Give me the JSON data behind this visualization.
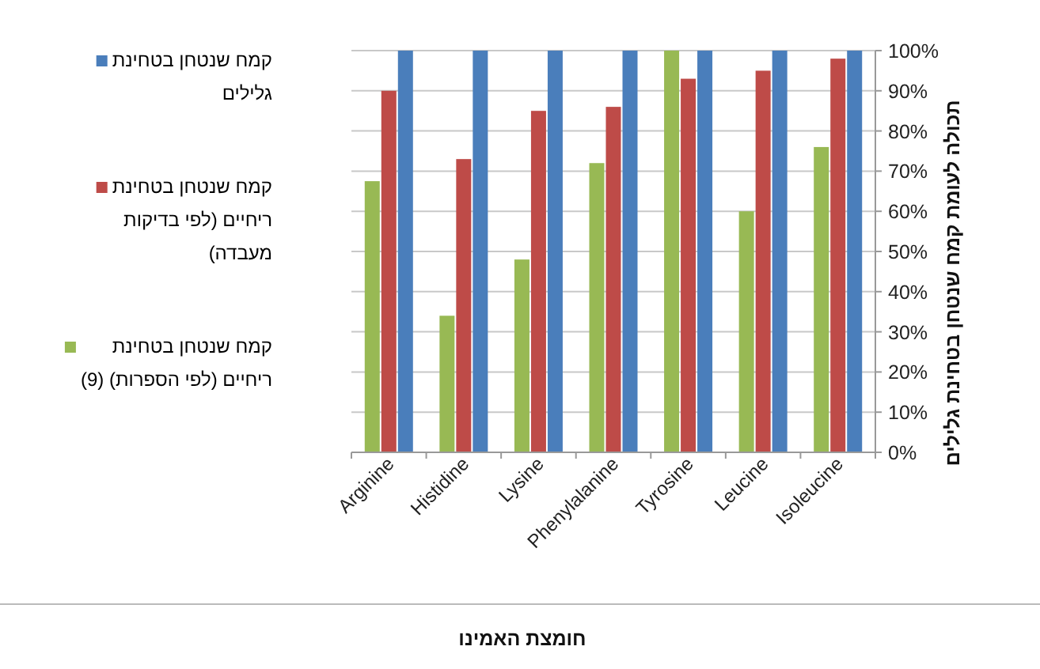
{
  "chart_data": {
    "type": "bar",
    "xlabel": "חומצת האמינו",
    "ylabel": "תכולה לעומת קמח שנטחן בטחינת גלילים",
    "categories": [
      "Arginine",
      "Histidine",
      "Lysine",
      "Phenylalanine",
      "Tyrosine",
      "Leucine",
      "Isoleucine"
    ],
    "series": [
      {
        "name": "קמח שנטחן בטחינת ריחיים (לפי הספרות) (9)",
        "color": "#98b954",
        "values": [
          67.5,
          34,
          48,
          72,
          100,
          60,
          76
        ]
      },
      {
        "name": "קמח שנטחן בטחינת ריחיים (לפי בדיקות מעבדה)",
        "color": "#be4b48",
        "values": [
          90,
          73,
          85,
          86,
          93,
          95,
          98
        ]
      },
      {
        "name": "קמח שנטחן בטחינת גלילים",
        "color": "#4a7ebb",
        "values": [
          100,
          100,
          100,
          100,
          100,
          100,
          100
        ]
      }
    ],
    "ylim": [
      0,
      100
    ],
    "yticks": [
      {
        "value": 0,
        "label": "0%"
      },
      {
        "value": 10,
        "label": "10%"
      },
      {
        "value": 20,
        "label": "20%"
      },
      {
        "value": 30,
        "label": "30%"
      },
      {
        "value": 40,
        "label": "40%"
      },
      {
        "value": 50,
        "label": "50%"
      },
      {
        "value": 60,
        "label": "60%"
      },
      {
        "value": 70,
        "label": "70%"
      },
      {
        "value": 80,
        "label": "80%"
      },
      {
        "value": 90,
        "label": "90%"
      },
      {
        "value": 100,
        "label": "100%"
      }
    ],
    "grid": "y",
    "legend": "left"
  }
}
